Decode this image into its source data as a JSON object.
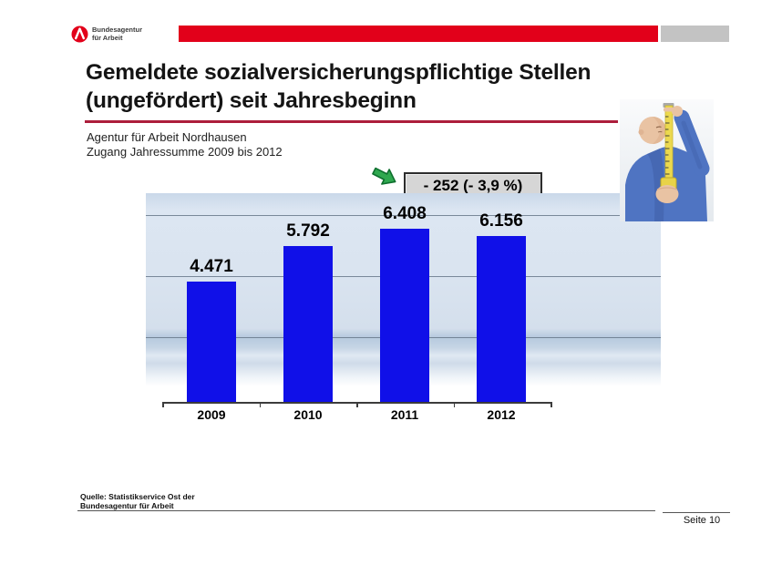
{
  "header": {
    "logo": {
      "line1": "Bundesagentur",
      "line2": "für Arbeit"
    },
    "banner_red_color": "#e2001a",
    "banner_gray_color": "#c3c3c3"
  },
  "title": {
    "line1": "Gemeldete sozialversicherungspflichtige Stellen",
    "line2": "(ungefördert) seit Jahresbeginn",
    "underline_color": "#ad1e3c"
  },
  "subtitle": {
    "line1": "Agentur für Arbeit Nordhausen",
    "line2": "Zugang Jahressumme 2009 bis 2012"
  },
  "annotation": {
    "text": "- 252 (- 3,9 %)",
    "arrow_icon": "thick-arrow-down-right",
    "arrow_color": "#2fa84f",
    "box_bg": "#d6d6d6"
  },
  "chart_data": {
    "type": "bar",
    "categories": [
      "2009",
      "2010",
      "2011",
      "2012"
    ],
    "values": [
      4471,
      5792,
      6408,
      6156
    ],
    "value_labels": [
      "4.471",
      "5.792",
      "6.408",
      "6.156"
    ],
    "title": "",
    "xlabel": "",
    "ylabel": "",
    "ylim": [
      0,
      7700
    ],
    "grid": true,
    "gridline_count": 3,
    "legend": "none",
    "bar_color": "#1010e8",
    "plot_bg": "gradient-light-blue"
  },
  "photo": {
    "description": "worker in blue jacket inspecting a vertical yellow measuring tape"
  },
  "footer": {
    "source_line1": "Quelle: Statistikservice Ost der",
    "source_line2": "Bundesagentur für Arbeit",
    "page": "Seite 10"
  }
}
